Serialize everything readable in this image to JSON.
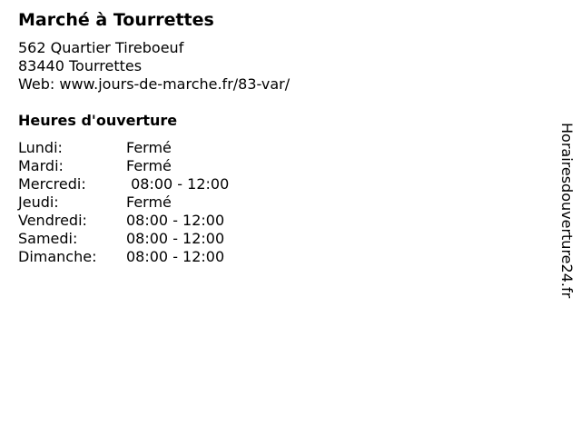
{
  "title": "Marché à Tourrettes",
  "address": {
    "street": "562 Quartier Tireboeuf",
    "city": "83440 Tourrettes",
    "web": "Web: www.jours-de-marche.fr/83-var/"
  },
  "hours_heading": "Heures d'ouverture",
  "hours": [
    {
      "day": "Lundi:",
      "value": "Fermé"
    },
    {
      "day": "Mardi:",
      "value": "Fermé"
    },
    {
      "day": "Mercredi:",
      "value": " 08:00 - 12:00"
    },
    {
      "day": "Jeudi:",
      "value": "Fermé"
    },
    {
      "day": "Vendredi:",
      "value": "08:00 - 12:00"
    },
    {
      "day": "Samedi:",
      "value": "08:00 - 12:00"
    },
    {
      "day": "Dimanche:",
      "value": "08:00 - 12:00"
    }
  ],
  "side_brand": "Horairesdouverture24.fr"
}
